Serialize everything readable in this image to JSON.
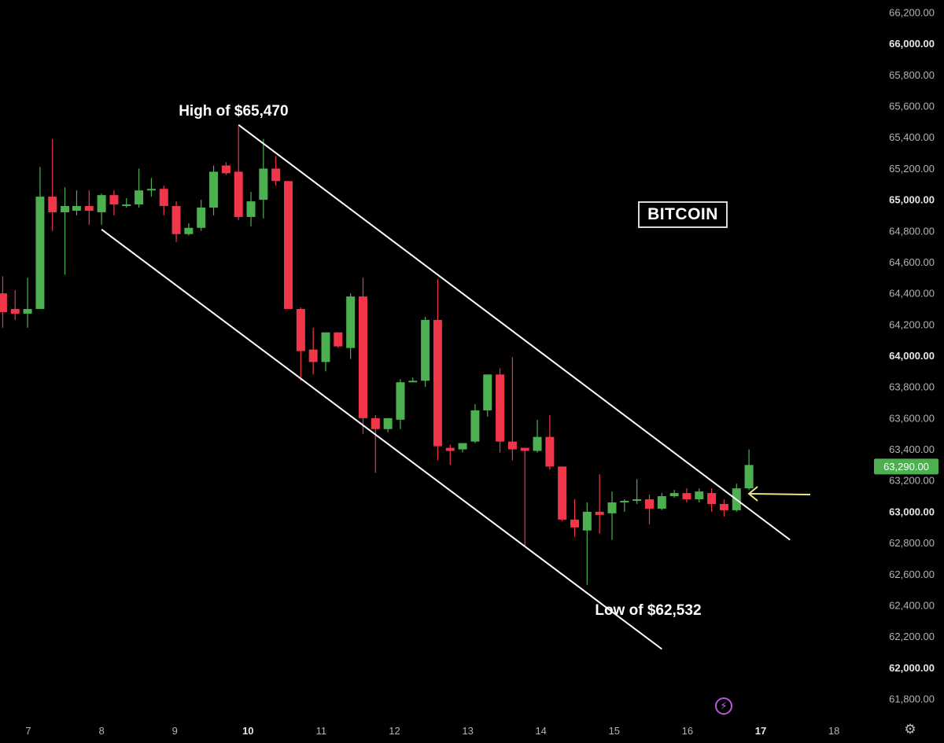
{
  "chart_data": {
    "type": "candlestick",
    "title": "BITCOIN",
    "ylim": [
      61700,
      66250
    ],
    "xlim": [
      6.6,
      18.5
    ],
    "y_ticks": [
      {
        "label": "66,200.00",
        "value": 66200,
        "major": false
      },
      {
        "label": "66,000.00",
        "value": 66000,
        "major": true
      },
      {
        "label": "65,800.00",
        "value": 65800,
        "major": false
      },
      {
        "label": "65,600.00",
        "value": 65600,
        "major": false
      },
      {
        "label": "65,400.00",
        "value": 65400,
        "major": false
      },
      {
        "label": "65,200.00",
        "value": 65200,
        "major": false
      },
      {
        "label": "65,000.00",
        "value": 65000,
        "major": true
      },
      {
        "label": "64,800.00",
        "value": 64800,
        "major": false
      },
      {
        "label": "64,600.00",
        "value": 64600,
        "major": false
      },
      {
        "label": "64,400.00",
        "value": 64400,
        "major": false
      },
      {
        "label": "64,200.00",
        "value": 64200,
        "major": false
      },
      {
        "label": "64,000.00",
        "value": 64000,
        "major": true
      },
      {
        "label": "63,800.00",
        "value": 63800,
        "major": false
      },
      {
        "label": "63,600.00",
        "value": 63600,
        "major": false
      },
      {
        "label": "63,400.00",
        "value": 63400,
        "major": false
      },
      {
        "label": "63,200.00",
        "value": 63200,
        "major": false
      },
      {
        "label": "63,000.00",
        "value": 63000,
        "major": true
      },
      {
        "label": "62,800.00",
        "value": 62800,
        "major": false
      },
      {
        "label": "62,600.00",
        "value": 62600,
        "major": false
      },
      {
        "label": "62,400.00",
        "value": 62400,
        "major": false
      },
      {
        "label": "62,200.00",
        "value": 62200,
        "major": false
      },
      {
        "label": "62,000.00",
        "value": 62000,
        "major": true
      },
      {
        "label": "61,800.00",
        "value": 61800,
        "major": false
      }
    ],
    "x_ticks": [
      {
        "label": "7",
        "value": 7,
        "major": false
      },
      {
        "label": "8",
        "value": 8,
        "major": false
      },
      {
        "label": "9",
        "value": 9,
        "major": false
      },
      {
        "label": "10",
        "value": 10,
        "major": true
      },
      {
        "label": "11",
        "value": 11,
        "major": false
      },
      {
        "label": "12",
        "value": 12,
        "major": false
      },
      {
        "label": "13",
        "value": 13,
        "major": false
      },
      {
        "label": "14",
        "value": 14,
        "major": false
      },
      {
        "label": "15",
        "value": 15,
        "major": false
      },
      {
        "label": "16",
        "value": 16,
        "major": false
      },
      {
        "label": "17",
        "value": 17,
        "major": true
      },
      {
        "label": "18",
        "value": 18,
        "major": false
      }
    ],
    "candles": [
      {
        "x": 6.65,
        "o": 64400,
        "h": 64510,
        "l": 64180,
        "c": 64280
      },
      {
        "x": 6.82,
        "o": 64300,
        "h": 64420,
        "l": 64230,
        "c": 64270
      },
      {
        "x": 6.99,
        "o": 64270,
        "h": 64500,
        "l": 64180,
        "c": 64300
      },
      {
        "x": 7.16,
        "o": 64300,
        "h": 65210,
        "l": 64300,
        "c": 65020
      },
      {
        "x": 7.33,
        "o": 65020,
        "h": 65390,
        "l": 64800,
        "c": 64920
      },
      {
        "x": 7.5,
        "o": 64920,
        "h": 65080,
        "l": 64520,
        "c": 64960
      },
      {
        "x": 7.66,
        "o": 64930,
        "h": 65060,
        "l": 64900,
        "c": 64960
      },
      {
        "x": 7.83,
        "o": 64960,
        "h": 65060,
        "l": 64840,
        "c": 64930
      },
      {
        "x": 8.0,
        "o": 64920,
        "h": 65040,
        "l": 64840,
        "c": 65030
      },
      {
        "x": 8.17,
        "o": 65030,
        "h": 65060,
        "l": 64900,
        "c": 64970
      },
      {
        "x": 8.34,
        "o": 64970,
        "h": 65010,
        "l": 64950,
        "c": 64970
      },
      {
        "x": 8.51,
        "o": 64970,
        "h": 65200,
        "l": 64950,
        "c": 65060
      },
      {
        "x": 8.68,
        "o": 65070,
        "h": 65140,
        "l": 65020,
        "c": 65070
      },
      {
        "x": 8.85,
        "o": 65070,
        "h": 65090,
        "l": 64900,
        "c": 64960
      },
      {
        "x": 9.02,
        "o": 64960,
        "h": 64990,
        "l": 64730,
        "c": 64780
      },
      {
        "x": 9.19,
        "o": 64780,
        "h": 64850,
        "l": 64770,
        "c": 64820
      },
      {
        "x": 9.36,
        "o": 64820,
        "h": 65000,
        "l": 64800,
        "c": 64950
      },
      {
        "x": 9.53,
        "o": 64950,
        "h": 65220,
        "l": 64900,
        "c": 65180
      },
      {
        "x": 9.7,
        "o": 65220,
        "h": 65240,
        "l": 65160,
        "c": 65170
      },
      {
        "x": 9.87,
        "o": 65180,
        "h": 65470,
        "l": 64870,
        "c": 64890
      },
      {
        "x": 10.04,
        "o": 64890,
        "h": 65050,
        "l": 64830,
        "c": 64990
      },
      {
        "x": 10.21,
        "o": 65000,
        "h": 65390,
        "l": 64880,
        "c": 65200
      },
      {
        "x": 10.38,
        "o": 65200,
        "h": 65280,
        "l": 65090,
        "c": 65120
      },
      {
        "x": 10.55,
        "o": 65120,
        "h": 65120,
        "l": 64300,
        "c": 64300
      },
      {
        "x": 10.72,
        "o": 64300,
        "h": 64310,
        "l": 63840,
        "c": 64030
      },
      {
        "x": 10.89,
        "o": 64040,
        "h": 64180,
        "l": 63880,
        "c": 63960
      },
      {
        "x": 11.06,
        "o": 63960,
        "h": 64130,
        "l": 63900,
        "c": 64150
      },
      {
        "x": 11.23,
        "o": 64150,
        "h": 64150,
        "l": 64050,
        "c": 64060
      },
      {
        "x": 11.4,
        "o": 64050,
        "h": 64400,
        "l": 63980,
        "c": 64380
      },
      {
        "x": 11.57,
        "o": 64380,
        "h": 64500,
        "l": 63500,
        "c": 63600
      },
      {
        "x": 11.74,
        "o": 63600,
        "h": 63620,
        "l": 63250,
        "c": 63530
      },
      {
        "x": 11.91,
        "o": 63530,
        "h": 63600,
        "l": 63510,
        "c": 63600
      },
      {
        "x": 12.08,
        "o": 63590,
        "h": 63850,
        "l": 63530,
        "c": 63830
      },
      {
        "x": 12.25,
        "o": 63830,
        "h": 63860,
        "l": 63830,
        "c": 63840
      },
      {
        "x": 12.42,
        "o": 63840,
        "h": 64250,
        "l": 63800,
        "c": 64230
      },
      {
        "x": 12.59,
        "o": 64230,
        "h": 64490,
        "l": 63330,
        "c": 63420
      },
      {
        "x": 12.76,
        "o": 63410,
        "h": 63430,
        "l": 63300,
        "c": 63390
      },
      {
        "x": 12.93,
        "o": 63400,
        "h": 63440,
        "l": 63380,
        "c": 63440
      },
      {
        "x": 13.1,
        "o": 63450,
        "h": 63690,
        "l": 63440,
        "c": 63650
      },
      {
        "x": 13.27,
        "o": 63650,
        "h": 63870,
        "l": 63610,
        "c": 63880
      },
      {
        "x": 13.44,
        "o": 63880,
        "h": 63920,
        "l": 63380,
        "c": 63450
      },
      {
        "x": 13.61,
        "o": 63450,
        "h": 63990,
        "l": 63330,
        "c": 63400
      },
      {
        "x": 13.78,
        "o": 63410,
        "h": 63410,
        "l": 62780,
        "c": 63390
      },
      {
        "x": 13.95,
        "o": 63390,
        "h": 63590,
        "l": 63380,
        "c": 63480
      },
      {
        "x": 14.12,
        "o": 63480,
        "h": 63620,
        "l": 63270,
        "c": 63290
      },
      {
        "x": 14.29,
        "o": 63290,
        "h": 63290,
        "l": 62940,
        "c": 62950
      },
      {
        "x": 14.46,
        "o": 62950,
        "h": 63080,
        "l": 62840,
        "c": 62900
      },
      {
        "x": 14.63,
        "o": 62880,
        "h": 63060,
        "l": 62532,
        "c": 63000
      },
      {
        "x": 14.8,
        "o": 63000,
        "h": 63240,
        "l": 62860,
        "c": 62980
      },
      {
        "x": 14.97,
        "o": 62990,
        "h": 63130,
        "l": 62820,
        "c": 63060
      },
      {
        "x": 15.14,
        "o": 63060,
        "h": 63080,
        "l": 63000,
        "c": 63070
      },
      {
        "x": 15.31,
        "o": 63070,
        "h": 63210,
        "l": 63050,
        "c": 63080
      },
      {
        "x": 15.48,
        "o": 63080,
        "h": 63110,
        "l": 62920,
        "c": 63020
      },
      {
        "x": 15.65,
        "o": 63020,
        "h": 63120,
        "l": 63010,
        "c": 63100
      },
      {
        "x": 15.82,
        "o": 63100,
        "h": 63140,
        "l": 63090,
        "c": 63120
      },
      {
        "x": 15.99,
        "o": 63120,
        "h": 63150,
        "l": 63060,
        "c": 63080
      },
      {
        "x": 16.16,
        "o": 63080,
        "h": 63150,
        "l": 63060,
        "c": 63130
      },
      {
        "x": 16.33,
        "o": 63120,
        "h": 63150,
        "l": 63000,
        "c": 63050
      },
      {
        "x": 16.5,
        "o": 63050,
        "h": 63080,
        "l": 62970,
        "c": 63010
      },
      {
        "x": 16.67,
        "o": 63010,
        "h": 63180,
        "l": 63000,
        "c": 63150
      },
      {
        "x": 16.84,
        "o": 63150,
        "h": 63400,
        "l": 63140,
        "c": 63300
      }
    ],
    "channel_lines": [
      {
        "name": "upper",
        "x1": 9.87,
        "y1": 65480,
        "x2": 17.4,
        "y2": 62820
      },
      {
        "name": "lower",
        "x1": 8.0,
        "y1": 64810,
        "x2": 15.65,
        "y2": 62120
      }
    ],
    "annotations": [
      {
        "text": "High of $65,470",
        "x": 9.87,
        "y": 65470
      },
      {
        "text": "Low of $62,532",
        "x": 14.63,
        "y": 62532
      }
    ],
    "current_price": {
      "label": "63,290.00",
      "value": 63290
    },
    "colors": {
      "up": "#4caf50",
      "down": "#f2364a",
      "background": "#000000",
      "lines": "#ffffff",
      "arrow": "#f3e08a",
      "price_tag": "#4caf50"
    }
  }
}
